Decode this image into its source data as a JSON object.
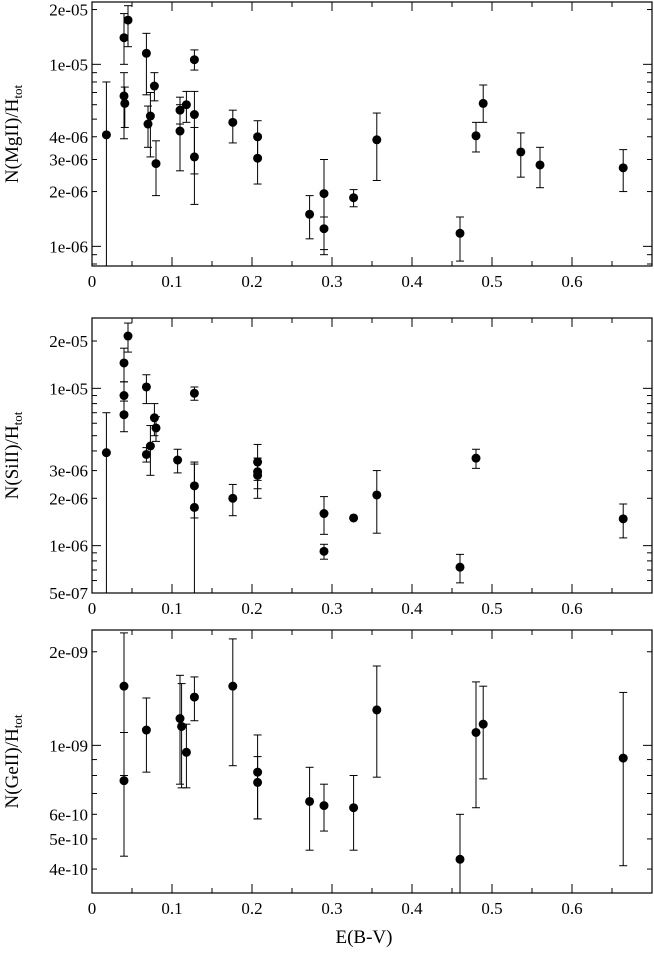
{
  "chart_data": [
    {
      "type": "scatter",
      "scale_y": "log",
      "ylabel_main": "N(MgII)/H",
      "ylabel_sub": "tot",
      "xlabel": "",
      "xlim": [
        0,
        0.7
      ],
      "ylim": [
        7.8e-07,
        2.2e-05
      ],
      "xticks": [
        0,
        0.1,
        0.2,
        0.3,
        0.4,
        0.5,
        0.6
      ],
      "xticklabels": [
        "0",
        "0.1",
        "0.2",
        "0.3",
        "0.4",
        "0.5",
        "0.6"
      ],
      "yticks": [
        1e-06,
        2e-06,
        3e-06,
        4e-06,
        1e-05,
        2e-05
      ],
      "yticklabels": [
        "1e-06",
        "2e-06",
        "3e-06",
        "4e-06",
        "1e-05",
        "2e-05"
      ],
      "points": [
        {
          "x": 0.018,
          "y": 4.1e-06,
          "lo": 7.8e-07,
          "hi": 8e-06
        },
        {
          "x": 0.04,
          "y": 1.4e-05,
          "lo": 1e-05,
          "hi": 1.9e-05
        },
        {
          "x": 0.04,
          "y": 6.7e-06,
          "lo": 3.9e-06,
          "hi": 9e-06
        },
        {
          "x": 0.041,
          "y": 6.1e-06,
          "lo": 4.5e-06,
          "hi": 7.5e-06
        },
        {
          "x": 0.045,
          "y": 1.75e-05,
          "lo": 1.25e-05,
          "hi": 2.1e-05
        },
        {
          "x": 0.068,
          "y": 1.15e-05,
          "lo": 6.8e-06,
          "hi": 1.48e-05
        },
        {
          "x": 0.07,
          "y": 4.7e-06,
          "lo": 3.5e-06,
          "hi": 5.9e-06
        },
        {
          "x": 0.073,
          "y": 5.2e-06,
          "lo": 3.1e-06,
          "hi": 7e-06
        },
        {
          "x": 0.078,
          "y": 7.6e-06,
          "lo": 6.3e-06,
          "hi": 9e-06
        },
        {
          "x": 0.08,
          "y": 2.85e-06,
          "lo": 1.9e-06,
          "hi": 3.8e-06
        },
        {
          "x": 0.11,
          "y": 5.6e-06,
          "lo": 4.7e-06,
          "hi": 6.6e-06
        },
        {
          "x": 0.11,
          "y": 4.3e-06,
          "lo": 2.6e-06,
          "hi": 6e-06
        },
        {
          "x": 0.118,
          "y": 6e-06,
          "lo": 4.8e-06,
          "hi": 7.1e-06
        },
        {
          "x": 0.128,
          "y": 1.06e-05,
          "lo": 9.3e-06,
          "hi": 1.2e-05
        },
        {
          "x": 0.128,
          "y": 5.3e-06,
          "lo": 2.5e-06,
          "hi": 7.1e-06
        },
        {
          "x": 0.128,
          "y": 3.1e-06,
          "lo": 1.7e-06,
          "hi": 4.5e-06
        },
        {
          "x": 0.176,
          "y": 4.8e-06,
          "lo": 3.7e-06,
          "hi": 5.6e-06
        },
        {
          "x": 0.207,
          "y": 4e-06,
          "lo": 3.1e-06,
          "hi": 4.9e-06
        },
        {
          "x": 0.207,
          "y": 3.05e-06,
          "lo": 2.2e-06,
          "hi": 4.1e-06
        },
        {
          "x": 0.272,
          "y": 1.5e-06,
          "lo": 1.1e-06,
          "hi": 1.9e-06
        },
        {
          "x": 0.29,
          "y": 1.95e-06,
          "lo": 9e-07,
          "hi": 3e-06
        },
        {
          "x": 0.29,
          "y": 1.25e-06,
          "lo": 9.6e-07,
          "hi": 1.45e-06
        },
        {
          "x": 0.327,
          "y": 1.85e-06,
          "lo": 1.65e-06,
          "hi": 2.05e-06
        },
        {
          "x": 0.356,
          "y": 3.85e-06,
          "lo": 2.3e-06,
          "hi": 5.4e-06
        },
        {
          "x": 0.46,
          "y": 1.18e-06,
          "lo": 8.3e-07,
          "hi": 1.45e-06
        },
        {
          "x": 0.48,
          "y": 4.05e-06,
          "lo": 3.3e-06,
          "hi": 4.8e-06
        },
        {
          "x": 0.489,
          "y": 6.1e-06,
          "lo": 4.8e-06,
          "hi": 7.7e-06
        },
        {
          "x": 0.536,
          "y": 3.3e-06,
          "lo": 2.4e-06,
          "hi": 4.2e-06
        },
        {
          "x": 0.56,
          "y": 2.8e-06,
          "lo": 2.1e-06,
          "hi": 3.5e-06
        },
        {
          "x": 0.664,
          "y": 2.7e-06,
          "lo": 2e-06,
          "hi": 3.4e-06
        }
      ]
    },
    {
      "type": "scatter",
      "scale_y": "log",
      "ylabel_main": "N(SiII)/H",
      "ylabel_sub": "tot",
      "xlabel": "",
      "xlim": [
        0,
        0.7
      ],
      "ylim": [
        5e-07,
        2.8e-05
      ],
      "xticks": [
        0,
        0.1,
        0.2,
        0.3,
        0.4,
        0.5,
        0.6
      ],
      "xticklabels": [
        "0",
        "0.1",
        "0.2",
        "0.3",
        "0.4",
        "0.5",
        "0.6"
      ],
      "yticks": [
        5e-07,
        1e-06,
        2e-06,
        3e-06,
        1e-05,
        2e-05
      ],
      "yticklabels": [
        "5e-07",
        "1e-06",
        "2e-06",
        "3e-06",
        "1e-05",
        "2e-05"
      ],
      "points": [
        {
          "x": 0.018,
          "y": 3.9e-06,
          "lo": 5e-07,
          "hi": 7e-06
        },
        {
          "x": 0.04,
          "y": 1.45e-05,
          "lo": 1.1e-05,
          "hi": 1.8e-05
        },
        {
          "x": 0.04,
          "y": 9e-06,
          "lo": 7e-06,
          "hi": 1.1e-05
        },
        {
          "x": 0.04,
          "y": 6.8e-06,
          "lo": 5.3e-06,
          "hi": 8.3e-06
        },
        {
          "x": 0.045,
          "y": 2.15e-05,
          "lo": 1.7e-05,
          "hi": 2.6e-05
        },
        {
          "x": 0.068,
          "y": 1.02e-05,
          "lo": 8e-06,
          "hi": 1.22e-05
        },
        {
          "x": 0.068,
          "y": 3.8e-06,
          "lo": 3.4e-06,
          "hi": 4.2e-06
        },
        {
          "x": 0.073,
          "y": 4.3e-06,
          "lo": 2.8e-06,
          "hi": 5.8e-06
        },
        {
          "x": 0.078,
          "y": 6.5e-06,
          "lo": 5e-06,
          "hi": 8e-06
        },
        {
          "x": 0.08,
          "y": 5.6e-06,
          "lo": 4.6e-06,
          "hi": 6.6e-06
        },
        {
          "x": 0.107,
          "y": 3.5e-06,
          "lo": 2.9e-06,
          "hi": 4.1e-06
        },
        {
          "x": 0.128,
          "y": 9.3e-06,
          "lo": 8.4e-06,
          "hi": 1.02e-05
        },
        {
          "x": 0.128,
          "y": 2.4e-06,
          "lo": 1.5e-06,
          "hi": 3.3e-06
        },
        {
          "x": 0.128,
          "y": 1.75e-06,
          "lo": 5e-07,
          "hi": 3.4e-06
        },
        {
          "x": 0.176,
          "y": 2e-06,
          "lo": 1.55e-06,
          "hi": 2.45e-06
        },
        {
          "x": 0.207,
          "y": 3.4e-06,
          "lo": 2.6e-06,
          "hi": 4.4e-06
        },
        {
          "x": 0.207,
          "y": 2.95e-06,
          "lo": 2.3e-06,
          "hi": 3.6e-06
        },
        {
          "x": 0.207,
          "y": 2.8e-06,
          "lo": 2e-06,
          "hi": 3.6e-06
        },
        {
          "x": 0.29,
          "y": 1.6e-06,
          "lo": 1.18e-06,
          "hi": 2.05e-06
        },
        {
          "x": 0.29,
          "y": 9.2e-07,
          "lo": 8.2e-07,
          "hi": 1.02e-06
        },
        {
          "x": 0.327,
          "y": 1.5e-06,
          "lo": 1.5e-06,
          "hi": 1.5e-06
        },
        {
          "x": 0.356,
          "y": 2.1e-06,
          "lo": 1.2e-06,
          "hi": 3e-06
        },
        {
          "x": 0.46,
          "y": 7.3e-07,
          "lo": 5.8e-07,
          "hi": 8.8e-07
        },
        {
          "x": 0.48,
          "y": 3.6e-06,
          "lo": 3.1e-06,
          "hi": 4.1e-06
        },
        {
          "x": 0.664,
          "y": 1.48e-06,
          "lo": 1.12e-06,
          "hi": 1.84e-06
        }
      ]
    },
    {
      "type": "scatter",
      "scale_y": "log",
      "ylabel_main": "N(GeII)/H",
      "ylabel_sub": "tot",
      "xlabel": "E(B-V)",
      "xlim": [
        0,
        0.7
      ],
      "ylim": [
        3.35e-10,
        2.35e-09
      ],
      "xticks": [
        0,
        0.1,
        0.2,
        0.3,
        0.4,
        0.5,
        0.6
      ],
      "xticklabels": [
        "0",
        "0.1",
        "0.2",
        "0.3",
        "0.4",
        "0.5",
        "0.6"
      ],
      "yticks": [
        4e-10,
        5e-10,
        6e-10,
        1e-09,
        2e-09
      ],
      "yticklabels": [
        "4e-10",
        "5e-10",
        "6e-10",
        "1e-09",
        "2e-09"
      ],
      "points": [
        {
          "x": 0.04,
          "y": 1.55e-09,
          "lo": 8e-10,
          "hi": 2.3e-09
        },
        {
          "x": 0.04,
          "y": 7.7e-10,
          "lo": 4.4e-10,
          "hi": 1.1e-09
        },
        {
          "x": 0.068,
          "y": 1.12e-09,
          "lo": 8.2e-10,
          "hi": 1.42e-09
        },
        {
          "x": 0.11,
          "y": 1.22e-09,
          "lo": 7.5e-10,
          "hi": 1.68e-09
        },
        {
          "x": 0.112,
          "y": 1.15e-09,
          "lo": 7.3e-10,
          "hi": 1.58e-09
        },
        {
          "x": 0.118,
          "y": 9.5e-10,
          "lo": 7.3e-10,
          "hi": 1.17e-09
        },
        {
          "x": 0.128,
          "y": 1.43e-09,
          "lo": 1.2e-09,
          "hi": 1.66e-09
        },
        {
          "x": 0.176,
          "y": 1.55e-09,
          "lo": 8.6e-10,
          "hi": 2.2e-09
        },
        {
          "x": 0.207,
          "y": 8.2e-10,
          "lo": 5.8e-10,
          "hi": 1.08e-09
        },
        {
          "x": 0.207,
          "y": 7.6e-10,
          "lo": 5.8e-10,
          "hi": 9.2e-10
        },
        {
          "x": 0.272,
          "y": 6.6e-10,
          "lo": 4.6e-10,
          "hi": 8.5e-10
        },
        {
          "x": 0.29,
          "y": 6.4e-10,
          "lo": 5.3e-10,
          "hi": 7.5e-10
        },
        {
          "x": 0.327,
          "y": 6.3e-10,
          "lo": 4.6e-10,
          "hi": 8e-10
        },
        {
          "x": 0.356,
          "y": 1.3e-09,
          "lo": 7.9e-10,
          "hi": 1.8e-09
        },
        {
          "x": 0.46,
          "y": 4.3e-10,
          "lo": 3.35e-10,
          "hi": 6e-10
        },
        {
          "x": 0.48,
          "y": 1.1e-09,
          "lo": 6.3e-10,
          "hi": 1.6e-09
        },
        {
          "x": 0.489,
          "y": 1.17e-09,
          "lo": 7.8e-10,
          "hi": 1.55e-09
        },
        {
          "x": 0.664,
          "y": 9.1e-10,
          "lo": 4.1e-10,
          "hi": 1.48e-09
        }
      ]
    }
  ]
}
